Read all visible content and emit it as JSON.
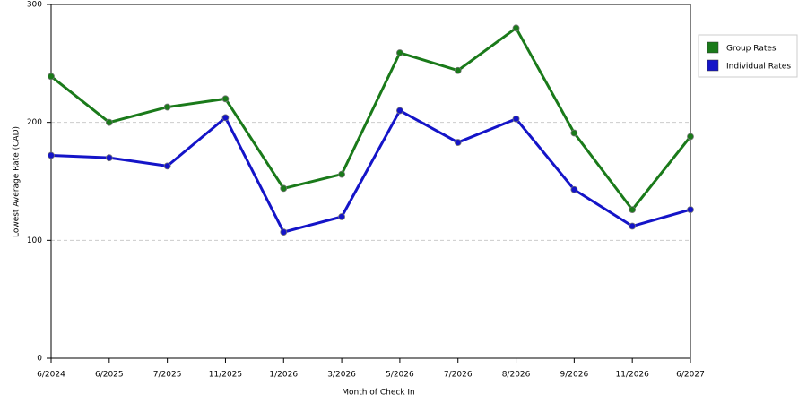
{
  "chart_data": {
    "type": "line",
    "x_label": "Month of Check In",
    "y_label": "Lowest Average Rate (CAD)",
    "categories": [
      "6/2024",
      "6/2025",
      "7/2025",
      "11/2025",
      "1/2026",
      "3/2026",
      "5/2026",
      "7/2026",
      "8/2026",
      "9/2026",
      "11/2026",
      "6/2027"
    ],
    "series": [
      {
        "name": "Group Rates",
        "color": "#1a7a1a",
        "values": [
          239,
          200,
          213,
          220,
          144,
          156,
          259,
          244,
          280,
          191,
          126,
          188
        ]
      },
      {
        "name": "Individual Rates",
        "color": "#1414c8",
        "values": [
          172,
          170,
          163,
          204,
          107,
          120,
          210,
          183,
          203,
          143,
          112,
          126
        ]
      }
    ],
    "ylim": [
      0,
      300
    ],
    "yticks": [
      0,
      100,
      200,
      300
    ],
    "grid": true,
    "legend": "right"
  }
}
